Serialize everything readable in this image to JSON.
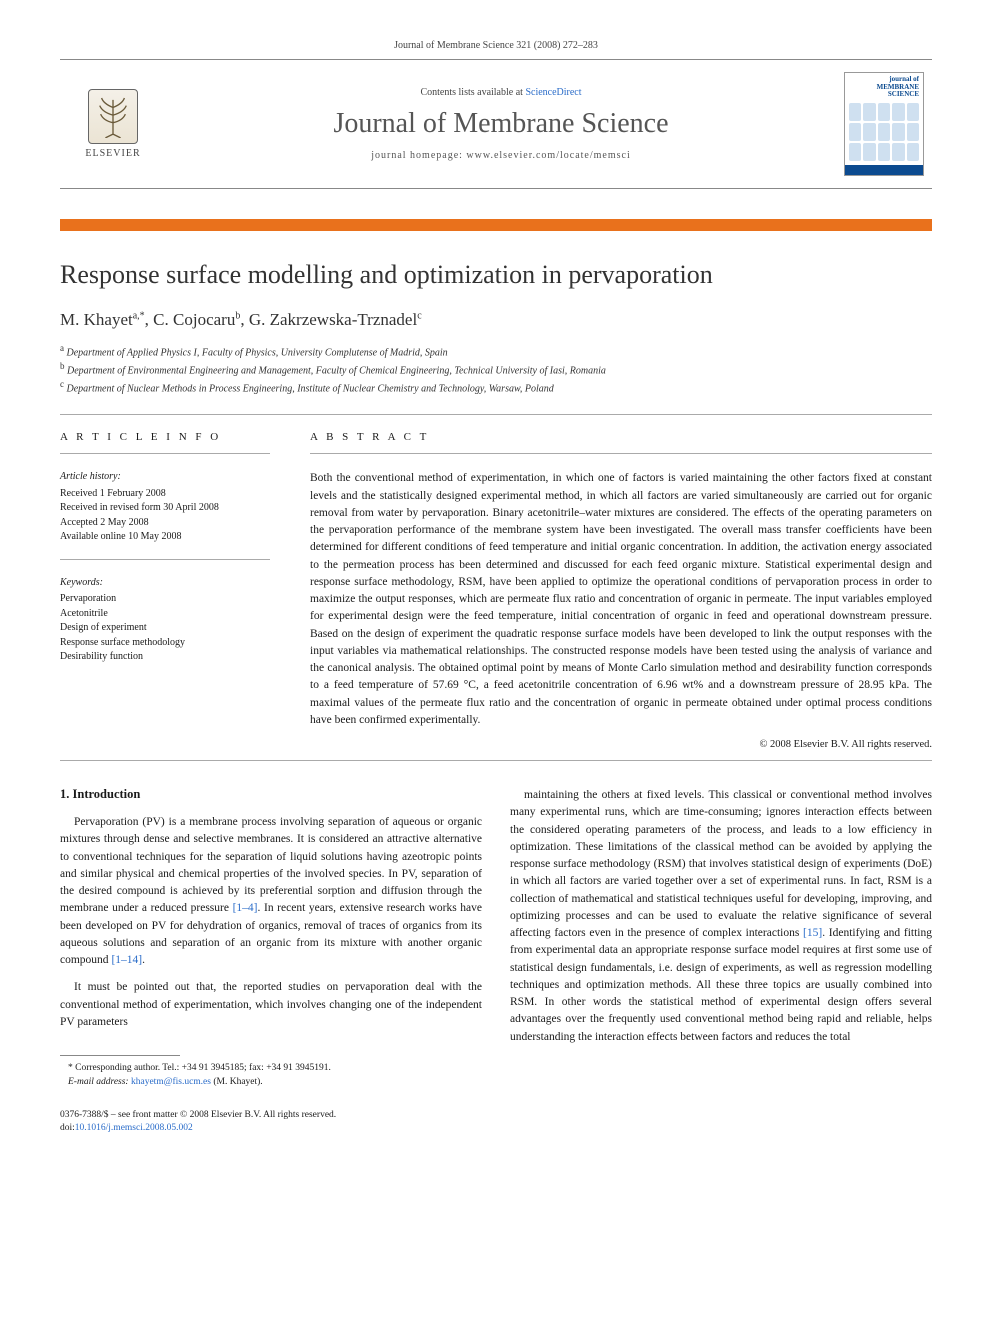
{
  "header": {
    "citation": "Journal of Membrane Science 321 (2008) 272–283",
    "contents_pre": "Contents lists available at ",
    "contents_link": "ScienceDirect",
    "journal_name": "Journal of Membrane Science",
    "homepage": "journal homepage: www.elsevier.com/locate/memsci",
    "publisher": "ELSEVIER",
    "cover_journal_label": "journal of\nMEMBRANE\nSCIENCE"
  },
  "article": {
    "title": "Response surface modelling and optimization in pervaporation",
    "authors_html": "M. Khayet<sup>a,*</sup>, C. Cojocaru<sup>b</sup>, G. Zakrzewska-Trznadel<sup>c</sup>",
    "affiliations": [
      {
        "sup": "a",
        "text": "Department of Applied Physics I, Faculty of Physics, University Complutense of Madrid, Spain"
      },
      {
        "sup": "b",
        "text": "Department of Environmental Engineering and Management, Faculty of Chemical Engineering, Technical University of Iasi, Romania"
      },
      {
        "sup": "c",
        "text": "Department of Nuclear Methods in Process Engineering, Institute of Nuclear Chemistry and Technology, Warsaw, Poland"
      }
    ]
  },
  "meta": {
    "info_label": "A R T I C L E   I N F O",
    "history_label": "Article history:",
    "history": [
      "Received 1 February 2008",
      "Received in revised form 30 April 2008",
      "Accepted 2 May 2008",
      "Available online 10 May 2008"
    ],
    "keywords_label": "Keywords:",
    "keywords": [
      "Pervaporation",
      "Acetonitrile",
      "Design of experiment",
      "Response surface methodology",
      "Desirability function"
    ],
    "abstract_label": "A B S T R A C T",
    "abstract": "Both the conventional method of experimentation, in which one of factors is varied maintaining the other factors fixed at constant levels and the statistically designed experimental method, in which all factors are varied simultaneously are carried out for organic removal from water by pervaporation. Binary acetonitrile–water mixtures are considered. The effects of the operating parameters on the pervaporation performance of the membrane system have been investigated. The overall mass transfer coefficients have been determined for different conditions of feed temperature and initial organic concentration. In addition, the activation energy associated to the permeation process has been determined and discussed for each feed organic mixture. Statistical experimental design and response surface methodology, RSM, have been applied to optimize the operational conditions of pervaporation process in order to maximize the output responses, which are permeate flux ratio and concentration of organic in permeate. The input variables employed for experimental design were the feed temperature, initial concentration of organic in feed and operational downstream pressure. Based on the design of experiment the quadratic response surface models have been developed to link the output responses with the input variables via mathematical relationships. The constructed response models have been tested using the analysis of variance and the canonical analysis. The obtained optimal point by means of Monte Carlo simulation method and desirability function corresponds to a feed temperature of 57.69 °C, a feed acetonitrile concentration of 6.96 wt% and a downstream pressure of 28.95 kPa. The maximal values of the permeate flux ratio and the concentration of organic in permeate obtained under optimal process conditions have been confirmed experimentally.",
    "copyright": "© 2008 Elsevier B.V. All rights reserved."
  },
  "body": {
    "section_heading": "1. Introduction",
    "left_paras": [
      "Pervaporation (PV) is a membrane process involving separation of aqueous or organic mixtures through dense and selective membranes. It is considered an attractive alternative to conventional techniques for the separation of liquid solutions having azeotropic points and similar physical and chemical properties of the involved species. In PV, separation of the desired compound is achieved by its preferential sorption and diffusion through the membrane under a reduced pressure [1–4]. In recent years, extensive research works have been developed on PV for dehydration of organics, removal of traces of organics from its aqueous solutions and separation of an organic from its mixture with another organic compound [1–14].",
      "It must be pointed out that, the reported studies on pervaporation deal with the conventional method of experimentation, which involves changing one of the independent PV parameters"
    ],
    "right_paras": [
      "maintaining the others at fixed levels. This classical or conventional method involves many experimental runs, which are time-consuming; ignores interaction effects between the considered operating parameters of the process, and leads to a low efficiency in optimization. These limitations of the classical method can be avoided by applying the response surface methodology (RSM) that involves statistical design of experiments (DoE) in which all factors are varied together over a set of experimental runs. In fact, RSM is a collection of mathematical and statistical techniques useful for developing, improving, and optimizing processes and can be used to evaluate the relative significance of several affecting factors even in the presence of complex interactions [15]. Identifying and fitting from experimental data an appropriate response surface model requires at first some use of statistical design fundamentals, i.e. design of experiments, as well as regression modelling techniques and optimization methods. All these three topics are usually combined into RSM. In other words the statistical method of experimental design offers several advantages over the frequently used conventional method being rapid and reliable, helps understanding the interaction effects between factors and reduces the total"
    ],
    "refs": {
      "r1": "[1–4]",
      "r2": "[1–14]",
      "r3": "[15]"
    }
  },
  "footnote": {
    "corr": "* Corresponding author. Tel.: +34 91 3945185; fax: +34 91 3945191.",
    "email_label": "E-mail address:",
    "email": "khayetm@fis.ucm.es",
    "email_person": " (M. Khayet)."
  },
  "footer": {
    "line1": "0376-7388/$ – see front matter © 2008 Elsevier B.V. All rights reserved.",
    "doi_label": "doi:",
    "doi": "10.1016/j.memsci.2008.05.002"
  },
  "colors": {
    "accent_orange": "#e9711c",
    "link_blue": "#2a6cc9",
    "text_main": "#1a1a1a",
    "rule_gray": "#aaaaaa"
  }
}
